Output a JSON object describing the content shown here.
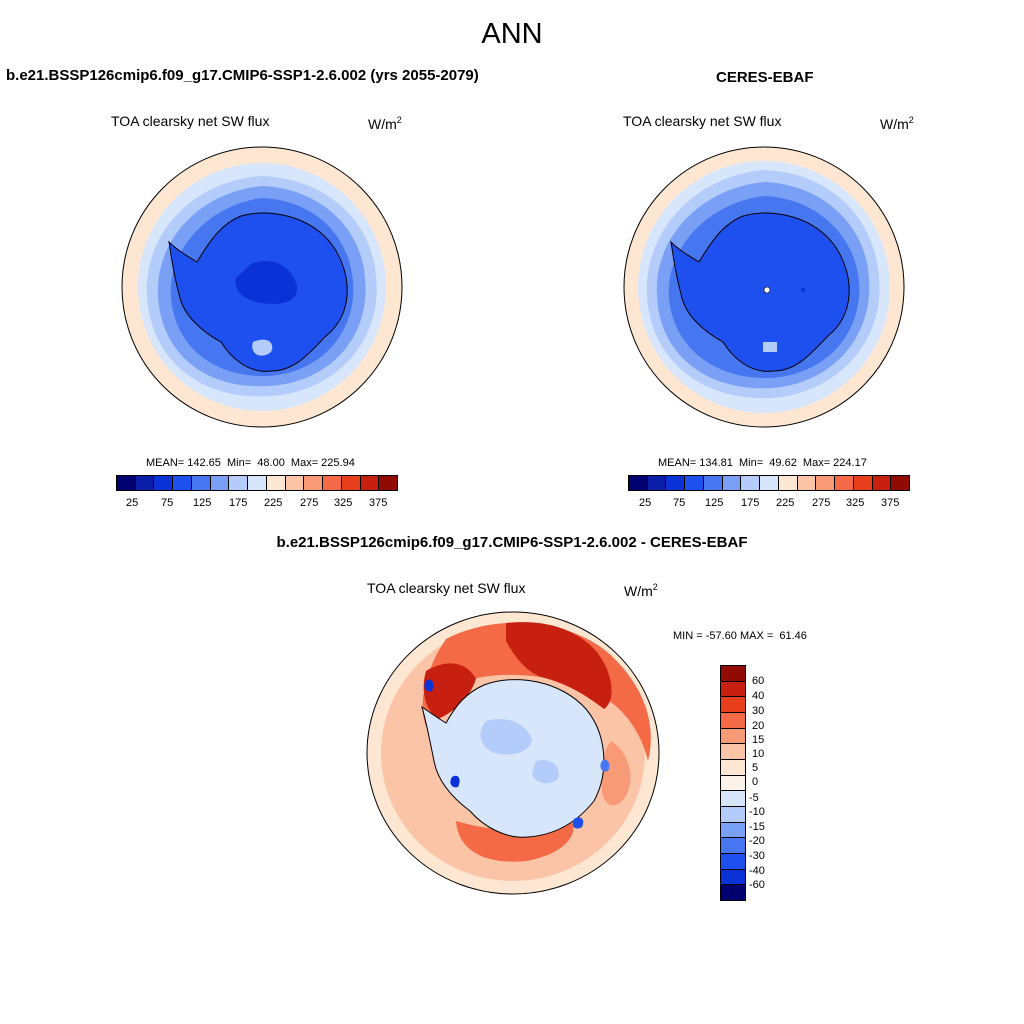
{
  "figure_title": "ANN",
  "units_base": "W/m",
  "units_exp": "2",
  "colors": {
    "abs_scale": [
      "#00006e",
      "#0a1ea8",
      "#0a32d6",
      "#1e50f0",
      "#4677f0",
      "#7aa0f5",
      "#b4ccfa",
      "#d8e6fc",
      "#fde7d2",
      "#fbc4a6",
      "#f89a76",
      "#f46a46",
      "#e83e1c",
      "#c82010",
      "#920b03"
    ],
    "diff_scale": [
      "#00006e",
      "#0018a8",
      "#0a32d6",
      "#1e50f0",
      "#4677f0",
      "#7aa0f5",
      "#b4ccfa",
      "#d8e6fc",
      "#fde7d2",
      "#fbc4a6",
      "#f89a76",
      "#f46a46",
      "#e83e1c",
      "#c82010",
      "#920b03"
    ]
  },
  "panels": {
    "model": {
      "title": "b.e21.BSSP126cmip6.f09_g17.CMIP6-SSP1-2.6.002 (yrs 2055-2079)",
      "subtitle": "TOA clearsky net SW flux",
      "stats_text": "MEAN= 142.65  Min=  48.00  Max= 225.94",
      "colorbar_ticks": [
        "25",
        "75",
        "125",
        "175",
        "225",
        "275",
        "325",
        "375"
      ]
    },
    "obs": {
      "title": "CERES-EBAF",
      "subtitle": "TOA clearsky net SW flux",
      "stats_text": "MEAN= 134.81  Min=  49.62  Max= 224.17",
      "colorbar_ticks": [
        "25",
        "75",
        "125",
        "175",
        "225",
        "275",
        "325",
        "375"
      ]
    },
    "diff": {
      "title": "b.e21.BSSP126cmip6.f09_g17.CMIP6-SSP1-2.6.002 - CERES-EBAF",
      "subtitle": "TOA clearsky net SW flux",
      "minmax_text": "MIN = -57.60 MAX =  61.46",
      "colorbar_ticks": [
        "60",
        "40",
        "30",
        "20",
        "15",
        "10",
        "5",
        "0",
        "-5",
        "-10",
        "-15",
        "-20",
        "-30",
        "-40",
        "-60"
      ]
    }
  }
}
